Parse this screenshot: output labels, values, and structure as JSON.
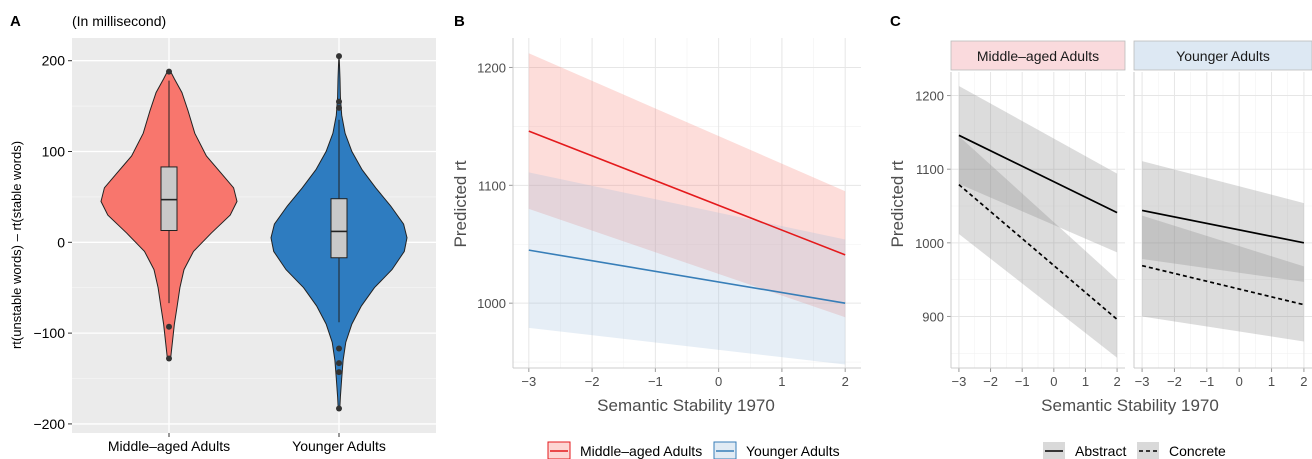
{
  "figure": {
    "panel_labels": [
      "A",
      "B",
      "C"
    ]
  },
  "chart_data": [
    {
      "panel": "A",
      "type": "violin",
      "title": "(In millisecond)",
      "xlabel": "",
      "ylabel": "rt(unstable words) – rt(stable words)",
      "categories": [
        "Middle–aged Adults",
        "Younger Adults"
      ],
      "ylim": [
        -210,
        225
      ],
      "yticks": [
        -200,
        -100,
        0,
        100,
        200
      ],
      "ytick_labels": [
        "−200",
        "−100",
        "0",
        "100",
        "200"
      ],
      "grid": true,
      "groups": [
        {
          "name": "Middle–aged Adults",
          "color": "#F8766D",
          "box": {
            "q1": 13,
            "median": 47,
            "q3": 83,
            "whisker_low": -67,
            "whisker_high": 178
          },
          "outliers": [
            188,
            -93,
            -128
          ],
          "density_profile": [
            [
              -130,
              0.02
            ],
            [
              -110,
              0.05
            ],
            [
              -90,
              0.08
            ],
            [
              -70,
              0.12
            ],
            [
              -50,
              0.16
            ],
            [
              -30,
              0.22
            ],
            [
              -10,
              0.36
            ],
            [
              10,
              0.62
            ],
            [
              30,
              0.9
            ],
            [
              45,
              1.0
            ],
            [
              60,
              0.95
            ],
            [
              75,
              0.78
            ],
            [
              95,
              0.55
            ],
            [
              120,
              0.38
            ],
            [
              145,
              0.28
            ],
            [
              165,
              0.19
            ],
            [
              180,
              0.08
            ],
            [
              190,
              0.01
            ]
          ]
        },
        {
          "name": "Younger Adults",
          "color": "#2E7CC0",
          "box": {
            "q1": -17,
            "median": 12,
            "q3": 48,
            "whisker_low": -88,
            "whisker_high": 135
          },
          "outliers": [
            205,
            155,
            148,
            -117,
            -133,
            -143,
            -183
          ],
          "density_profile": [
            [
              -185,
              0.01
            ],
            [
              -170,
              0.02
            ],
            [
              -150,
              0.04
            ],
            [
              -130,
              0.06
            ],
            [
              -110,
              0.1
            ],
            [
              -90,
              0.19
            ],
            [
              -70,
              0.33
            ],
            [
              -50,
              0.52
            ],
            [
              -30,
              0.78
            ],
            [
              -10,
              0.96
            ],
            [
              5,
              1.0
            ],
            [
              20,
              0.95
            ],
            [
              40,
              0.76
            ],
            [
              60,
              0.54
            ],
            [
              80,
              0.34
            ],
            [
              100,
              0.19
            ],
            [
              120,
              0.09
            ],
            [
              140,
              0.04
            ],
            [
              160,
              0.02
            ],
            [
              180,
              0.015
            ],
            [
              195,
              0.008
            ],
            [
              205,
              0.002
            ]
          ]
        }
      ]
    },
    {
      "panel": "B",
      "type": "line",
      "title": "",
      "xlabel": "Semantic Stability 1970",
      "ylabel": "Predicted rt",
      "xlim": [
        -3.25,
        2.25
      ],
      "ylim": [
        945,
        1225
      ],
      "xticks": [
        -3,
        -2,
        -1,
        0,
        1,
        2
      ],
      "xtick_labels": [
        "−3",
        "−2",
        "−1",
        "0",
        "1",
        "2"
      ],
      "yticks": [
        1000,
        1100,
        1200
      ],
      "ytick_labels": [
        "1000",
        "1100",
        "1200"
      ],
      "legend_position": "bottom",
      "grid": true,
      "series": [
        {
          "name": "Middle–aged Adults",
          "color": "#E41A1C",
          "fill": "#F8766D",
          "x": [
            -3,
            2
          ],
          "y": [
            1146,
            1041
          ],
          "lower": [
            1080,
            988
          ],
          "upper": [
            1212,
            1095
          ]
        },
        {
          "name": "Younger Adults",
          "color": "#377EB8",
          "fill": "#9DBCDC",
          "x": [
            -3,
            2
          ],
          "y": [
            1045,
            1000
          ],
          "lower": [
            979,
            948
          ],
          "upper": [
            1111,
            1054
          ]
        }
      ]
    },
    {
      "panel": "C",
      "type": "line",
      "title": "",
      "xlabel": "Semantic Stability 1970",
      "ylabel": "Predicted rt",
      "xlim": [
        -3.25,
        2.25
      ],
      "ylim": [
        830,
        1232
      ],
      "xticks": [
        -3,
        -2,
        -1,
        0,
        1,
        2
      ],
      "xtick_labels": [
        "−3",
        "−2",
        "−1",
        "0",
        "1",
        "2"
      ],
      "yticks": [
        900,
        1000,
        1100,
        1200
      ],
      "ytick_labels": [
        "900",
        "1000",
        "1100",
        "1200"
      ],
      "legend_position": "bottom",
      "grid": true,
      "facets": [
        {
          "name": "Middle–aged Adults",
          "strip_color": "#FADADD",
          "series": [
            {
              "name": "Abstract",
              "linetype": "solid",
              "x": [
                -3,
                2
              ],
              "y": [
                1146,
                1041
              ],
              "lower": [
                1080,
                987
              ],
              "upper": [
                1213,
                1094
              ]
            },
            {
              "name": "Concrete",
              "linetype": "dashed",
              "x": [
                -3,
                2
              ],
              "y": [
                1079,
                896
              ],
              "lower": [
                1012,
                844
              ],
              "upper": [
                1145,
                950
              ]
            }
          ]
        },
        {
          "name": "Younger Adults",
          "strip_color": "#DDE8F3",
          "series": [
            {
              "name": "Abstract",
              "linetype": "solid",
              "x": [
                -3,
                2
              ],
              "y": [
                1044,
                1000
              ],
              "lower": [
                978,
                947
              ],
              "upper": [
                1111,
                1054
              ]
            },
            {
              "name": "Concrete",
              "linetype": "dashed",
              "x": [
                -3,
                2
              ],
              "y": [
                969,
                916
              ],
              "lower": [
                900,
                866
              ],
              "upper": [
                1037,
                968
              ]
            }
          ]
        }
      ],
      "legend": [
        {
          "name": "Abstract",
          "linetype": "solid"
        },
        {
          "name": "Concrete",
          "linetype": "dashed"
        }
      ]
    }
  ]
}
